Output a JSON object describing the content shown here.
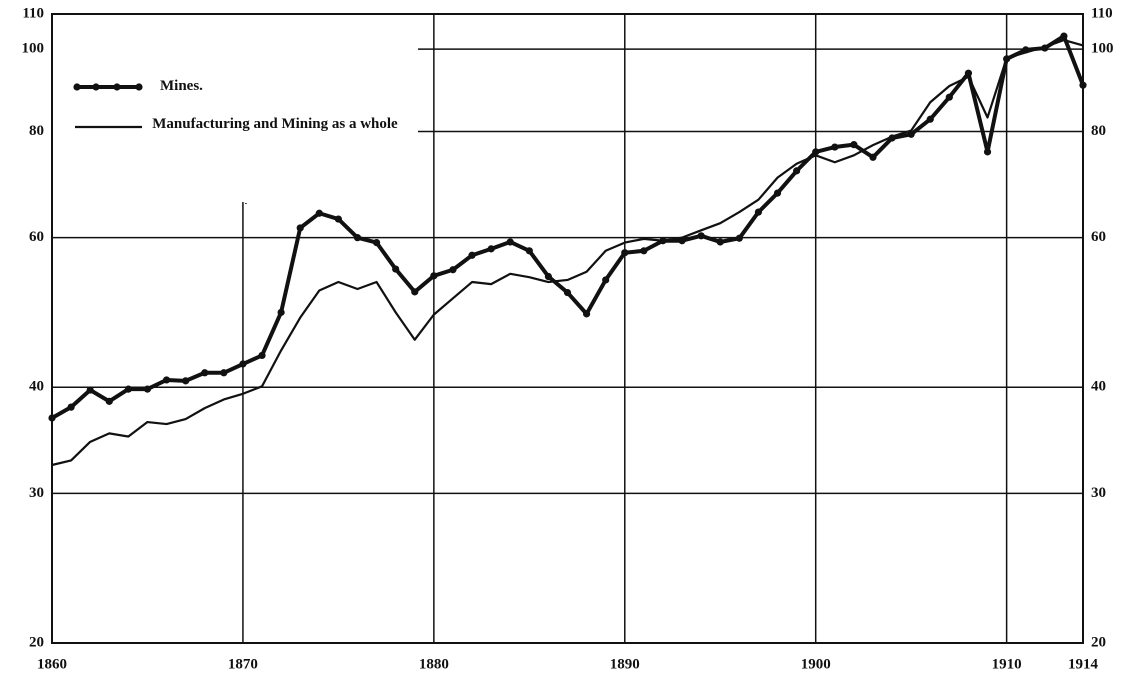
{
  "chart_data": {
    "type": "line",
    "x": [
      1860,
      1861,
      1862,
      1863,
      1864,
      1865,
      1866,
      1867,
      1868,
      1869,
      1870,
      1871,
      1872,
      1873,
      1874,
      1875,
      1876,
      1877,
      1878,
      1879,
      1880,
      1881,
      1882,
      1883,
      1884,
      1885,
      1886,
      1887,
      1888,
      1889,
      1890,
      1891,
      1892,
      1893,
      1894,
      1895,
      1896,
      1897,
      1898,
      1899,
      1900,
      1901,
      1902,
      1903,
      1904,
      1905,
      1906,
      1907,
      1908,
      1909,
      1910,
      1911,
      1912,
      1913,
      1914
    ],
    "series": [
      {
        "name": "Mines.",
        "color": "#111111",
        "markers": true,
        "values": [
          36.8,
          37.9,
          39.7,
          38.5,
          39.8,
          39.8,
          40.8,
          40.7,
          41.6,
          41.6,
          42.6,
          43.6,
          49.0,
          61.6,
          64.1,
          63.1,
          60.0,
          59.2,
          55.1,
          51.8,
          54.1,
          55.0,
          57.2,
          58.2,
          59.3,
          57.9,
          54.0,
          51.7,
          48.8,
          53.5,
          57.6,
          57.9,
          59.5,
          59.5,
          60.3,
          59.3,
          59.9,
          64.3,
          67.7,
          71.9,
          75.7,
          76.7,
          77.2,
          74.6,
          78.6,
          79.4,
          82.7,
          87.8,
          93.7,
          75.7,
          97.4,
          99.8,
          100.3,
          103.6,
          90.7
        ]
      },
      {
        "name": "Manufacturing and Mining as a whole",
        "color": "#111111",
        "markers": false,
        "values": [
          32.4,
          32.8,
          34.5,
          35.3,
          35.0,
          36.4,
          36.2,
          36.7,
          37.8,
          38.7,
          39.3,
          40.1,
          44.2,
          48.3,
          52.0,
          53.2,
          52.2,
          53.2,
          49.0,
          45.5,
          48.7,
          50.9,
          53.2,
          52.9,
          54.4,
          53.9,
          53.2,
          53.5,
          54.7,
          57.9,
          59.2,
          59.8,
          59.5,
          60.0,
          61.2,
          62.4,
          64.3,
          66.5,
          70.6,
          73.3,
          75.0,
          73.6,
          75.0,
          77.1,
          78.9,
          80.2,
          86.6,
          90.5,
          92.8,
          83.1,
          97.6,
          99.1,
          100.6,
          102.5,
          101.0
        ]
      }
    ],
    "xlim": [
      1860,
      1914
    ],
    "xticks": [
      1860,
      1870,
      1880,
      1890,
      1900,
      1910,
      1914
    ],
    "ylim": [
      20,
      110
    ],
    "yticks": [
      20,
      30,
      40,
      60,
      80,
      100,
      110
    ],
    "log_y": true,
    "grid": true,
    "legend": "upper left"
  }
}
